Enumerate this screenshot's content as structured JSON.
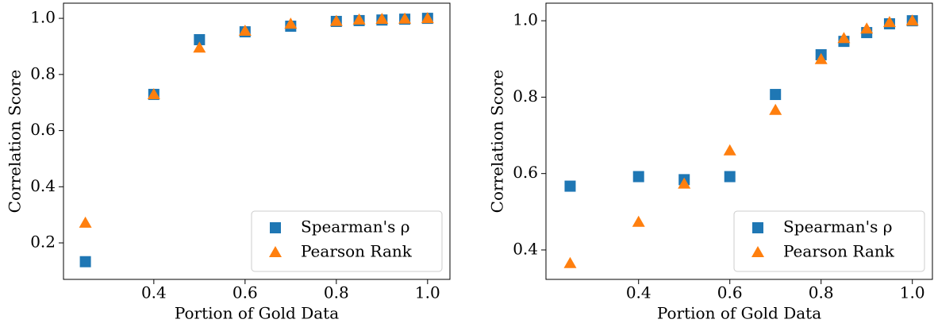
{
  "chart_data": [
    {
      "type": "scatter",
      "xlabel": "Portion of Gold Data",
      "ylabel": "Correlation Score",
      "x": [
        0.25,
        0.4,
        0.5,
        0.6,
        0.7,
        0.8,
        0.85,
        0.9,
        0.95,
        1.0
      ],
      "series": [
        {
          "name": "Spearman's ρ",
          "color": "#1f77b4",
          "marker": "square",
          "values": [
            0.133,
            0.729,
            0.924,
            0.952,
            0.972,
            0.989,
            0.992,
            0.994,
            0.997,
            1.0
          ]
        },
        {
          "name": "Pearson Rank",
          "color": "#ff7f0e",
          "marker": "triangle",
          "values": [
            0.271,
            0.729,
            0.895,
            0.955,
            0.98,
            0.99,
            0.995,
            0.997,
            0.998,
            1.0
          ]
        }
      ],
      "xlim": [
        0.202,
        1.049
      ],
      "ylim": [
        0.07,
        1.054
      ],
      "xticks": [
        0.4,
        0.6,
        0.8,
        {
          "value": 1,
          "label": "1.0"
        }
      ],
      "yticks": [
        0.2,
        0.4,
        0.6,
        0.8,
        {
          "value": 1,
          "label": "1.0"
        }
      ],
      "grid": false,
      "legend": "lower right"
    },
    {
      "type": "scatter",
      "xlabel": "Portion of Gold Data",
      "ylabel": "Correlation Score",
      "x": [
        0.25,
        0.4,
        0.5,
        0.6,
        0.7,
        0.8,
        0.85,
        0.9,
        0.95,
        1.0
      ],
      "series": [
        {
          "name": "Spearman's ρ",
          "color": "#1f77b4",
          "marker": "square",
          "values": [
            0.567,
            0.592,
            0.584,
            0.592,
            0.807,
            0.911,
            0.946,
            0.969,
            0.992,
            1.0
          ]
        },
        {
          "name": "Pearson Rank",
          "color": "#ff7f0e",
          "marker": "triangle",
          "values": [
            0.365,
            0.473,
            0.573,
            0.66,
            0.766,
            0.899,
            0.954,
            0.979,
            0.996,
            1.0
          ]
        }
      ],
      "xlim": [
        0.197,
        1.044
      ],
      "ylim": [
        0.323,
        1.046
      ],
      "xticks": [
        0.4,
        0.6,
        0.8,
        {
          "value": 1,
          "label": "1.0"
        }
      ],
      "yticks": [
        0.4,
        0.6,
        0.8,
        {
          "value": 1,
          "label": "1.0"
        }
      ],
      "grid": false,
      "legend": "lower right"
    }
  ]
}
